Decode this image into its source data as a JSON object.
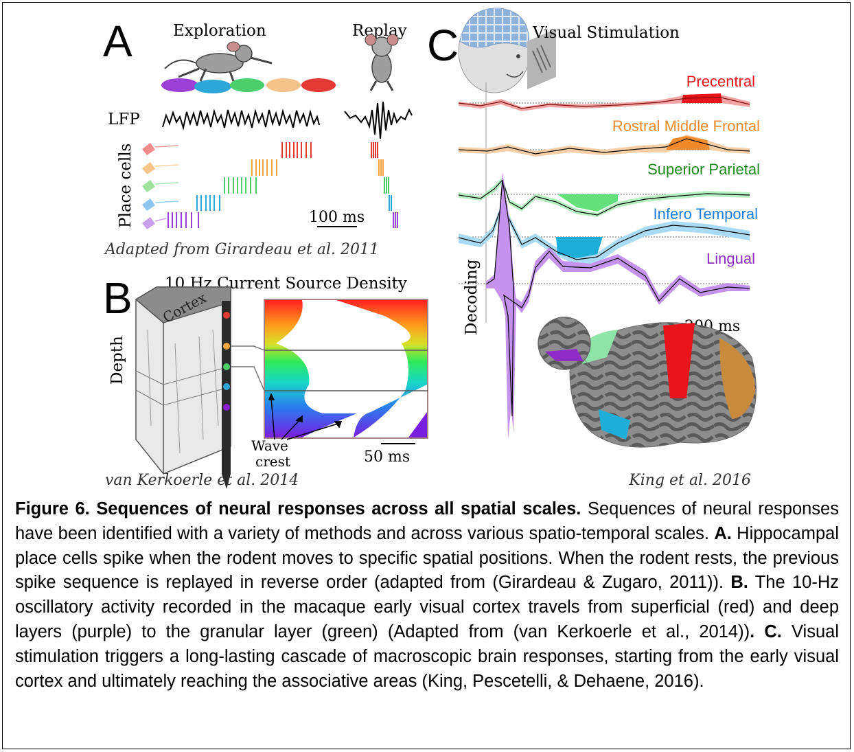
{
  "panel_a": {
    "letter": "A",
    "exploration_label": "Exploration",
    "replay_label": "Replay",
    "lfp_label": "LFP",
    "place_cells_label": "Place cells",
    "scale_label": "100 ms",
    "credit": "Adapted from Girardeau et al. 2011",
    "cell_colors": [
      "#e53935",
      "#f4a640",
      "#4ccf6a",
      "#2ea7d8",
      "#9b3fd6"
    ]
  },
  "panel_b": {
    "letter": "B",
    "title": "10 Hz Current Source Density",
    "depth_label": "Depth",
    "cortex_label": "Cortex",
    "wave_label_1": "Wave",
    "wave_label_2": "crest",
    "scale_label": "50 ms",
    "credit": "van Kerkoerle et al. 2014"
  },
  "panel_c": {
    "letter": "C",
    "title": "Visual Stimulation",
    "decoding_label": "Decoding",
    "scale_label": "200 ms",
    "credit": "King et al. 2016",
    "regions": [
      {
        "name": "Precentral",
        "color": "#e8141c"
      },
      {
        "name": "Rostral Middle Frontal",
        "color": "#f08a2c"
      },
      {
        "name": "Superior Parietal",
        "color": "#1d8a1d"
      },
      {
        "name": "Infero Temporal",
        "color": "#1f7fe0"
      },
      {
        "name": "Lingual",
        "color": "#8e2cc7"
      }
    ]
  },
  "caption": {
    "title": "Figure 6. Sequences of neural responses across all spatial scales.",
    "intro": " Sequences of neural responses have been identified with a variety of methods and across various spatio-temporal scales. ",
    "a_label": "A.",
    "a_text": " Hippocampal place cells spike when the rodent moves to specific spatial positions. When the rodent rests, the previous spike sequence is replayed in reverse order (adapted from (Girardeau & Zugaro, 2011)). ",
    "b_label": "B.",
    "b_text": " The 10-Hz oscillatory activity recorded in the macaque early visual cortex travels from superficial (red) and deep layers (purple) to the granular layer (green) (Adapted from (van Kerkoerle et al., 2014))",
    "b_end": ". ",
    "c_label": "C.",
    "c_text": " Visual stimulation triggers a long-lasting cascade of macroscopic brain responses, starting from the early visual cortex and ultimately reaching the associative areas (King, Pescetelli, & Dehaene, 2016)."
  }
}
